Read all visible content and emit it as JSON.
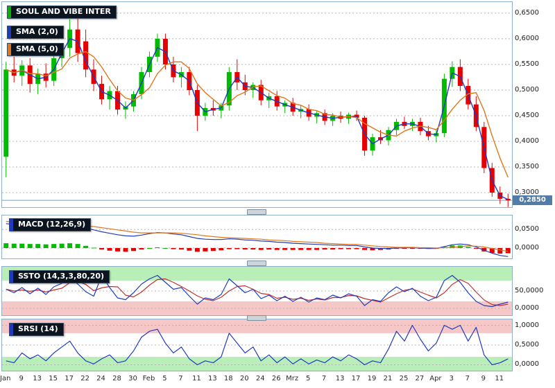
{
  "labels": {
    "title": {
      "text": "SOUL AND VIBE INTER",
      "tab_color": "#00b400"
    },
    "sma2": {
      "text": "SMA (2,0)",
      "tab_color": "#1e3bbd"
    },
    "sma5": {
      "text": "SMA (5,0)",
      "tab_color": "#e0761a"
    },
    "macd": {
      "text": "MACD (12,26,9)",
      "tab_color": "#1e3bbd"
    },
    "ssto": {
      "text": "SSTO (14,3,3,80,20)",
      "tab_color": "#1e3bbd"
    },
    "srsi": {
      "text": "SRSI (14)",
      "tab_color": "#1e3bbd"
    }
  },
  "chart_data": {
    "type": "candlestick",
    "title": "SOUL AND VIBE INTER",
    "x_ticks": [
      "Jan",
      "9",
      "13",
      "15",
      "17",
      "22",
      "24",
      "28",
      "30",
      "Feb",
      "5",
      "7",
      "11",
      "13",
      "18",
      "20",
      "24",
      "26",
      "Mrz",
      "5",
      "7",
      "13",
      "17",
      "19",
      "21",
      "25",
      "27",
      "Apr",
      "3",
      "7",
      "9",
      "11"
    ],
    "x_tick_step": 2,
    "colors": {
      "up": "#00bb00",
      "down": "#e60000",
      "grid": "#b4b4b4",
      "current_price_line": "#6fa0c8",
      "current_price_badge": "#527ca8"
    },
    "price": {
      "ylim": [
        0.2717,
        0.6715
      ],
      "ticks": [
        {
          "v": 0.65,
          "label": "0,6500"
        },
        {
          "v": 0.6,
          "label": "0,6000"
        },
        {
          "v": 0.55,
          "label": "0,5500"
        },
        {
          "v": 0.5,
          "label": "0,5000"
        },
        {
          "v": 0.45,
          "label": "0,4500"
        },
        {
          "v": 0.4,
          "label": "0,4000"
        },
        {
          "v": 0.35,
          "label": "0,3500"
        },
        {
          "v": 0.3,
          "label": "0,3000"
        }
      ],
      "current": {
        "v": 0.285,
        "label": "0,2850"
      },
      "sma": [
        {
          "name": "SMA (2,0)",
          "period": 2,
          "color": "#1e3bbd"
        },
        {
          "name": "SMA (5,0)",
          "period": 5,
          "color": "#e0761a"
        }
      ],
      "candles": [
        [
          0.37,
          0.555,
          0.33,
          0.54
        ],
        [
          0.54,
          0.565,
          0.515,
          0.528
        ],
        [
          0.528,
          0.558,
          0.508,
          0.548
        ],
        [
          0.548,
          0.562,
          0.495,
          0.512
        ],
        [
          0.512,
          0.542,
          0.492,
          0.532
        ],
        [
          0.532,
          0.552,
          0.505,
          0.518
        ],
        [
          0.518,
          0.572,
          0.508,
          0.562
        ],
        [
          0.562,
          0.592,
          0.545,
          0.582
        ],
        [
          0.582,
          0.638,
          0.565,
          0.618
        ],
        [
          0.618,
          0.65,
          0.555,
          0.572
        ],
        [
          0.595,
          0.618,
          0.525,
          0.54
        ],
        [
          0.54,
          0.56,
          0.498,
          0.512
        ],
        [
          0.512,
          0.528,
          0.472,
          0.482
        ],
        [
          0.482,
          0.508,
          0.462,
          0.498
        ],
        [
          0.498,
          0.508,
          0.452,
          0.462
        ],
        [
          0.462,
          0.478,
          0.444,
          0.468
        ],
        [
          0.468,
          0.498,
          0.458,
          0.492
        ],
        [
          0.492,
          0.545,
          0.482,
          0.535
        ],
        [
          0.535,
          0.575,
          0.525,
          0.565
        ],
        [
          0.565,
          0.61,
          0.555,
          0.6
        ],
        [
          0.6,
          0.61,
          0.54,
          0.55
        ],
        [
          0.55,
          0.565,
          0.515,
          0.525
        ],
        [
          0.525,
          0.545,
          0.505,
          0.535
        ],
        [
          0.535,
          0.545,
          0.49,
          0.5
        ],
        [
          0.5,
          0.51,
          0.42,
          0.45
        ],
        [
          0.45,
          0.475,
          0.44,
          0.465
        ],
        [
          0.465,
          0.48,
          0.45,
          0.46
        ],
        [
          0.46,
          0.475,
          0.445,
          0.47
        ],
        [
          0.47,
          0.545,
          0.46,
          0.535
        ],
        [
          0.535,
          0.56,
          0.5,
          0.515
        ],
        [
          0.515,
          0.53,
          0.49,
          0.5
        ],
        [
          0.5,
          0.515,
          0.485,
          0.51
        ],
        [
          0.51,
          0.52,
          0.47,
          0.48
        ],
        [
          0.48,
          0.495,
          0.465,
          0.488
        ],
        [
          0.488,
          0.498,
          0.46,
          0.468
        ],
        [
          0.468,
          0.48,
          0.455,
          0.475
        ],
        [
          0.475,
          0.485,
          0.45,
          0.458
        ],
        [
          0.458,
          0.47,
          0.445,
          0.463
        ],
        [
          0.463,
          0.472,
          0.44,
          0.448
        ],
        [
          0.448,
          0.46,
          0.435,
          0.455
        ],
        [
          0.455,
          0.462,
          0.432,
          0.44
        ],
        [
          0.44,
          0.455,
          0.43,
          0.45
        ],
        [
          0.45,
          0.458,
          0.436,
          0.444
        ],
        [
          0.444,
          0.456,
          0.434,
          0.452
        ],
        [
          0.452,
          0.46,
          0.44,
          0.446
        ],
        [
          0.446,
          0.45,
          0.372,
          0.382
        ],
        [
          0.382,
          0.415,
          0.372,
          0.408
        ],
        [
          0.408,
          0.422,
          0.395,
          0.402
        ],
        [
          0.402,
          0.428,
          0.392,
          0.422
        ],
        [
          0.422,
          0.444,
          0.412,
          0.438
        ],
        [
          0.438,
          0.448,
          0.424,
          0.43
        ],
        [
          0.43,
          0.444,
          0.42,
          0.438
        ],
        [
          0.438,
          0.446,
          0.412,
          0.42
        ],
        [
          0.42,
          0.43,
          0.402,
          0.41
        ],
        [
          0.41,
          0.424,
          0.398,
          0.416
        ],
        [
          0.416,
          0.532,
          0.408,
          0.522
        ],
        [
          0.522,
          0.556,
          0.506,
          0.545
        ],
        [
          0.545,
          0.56,
          0.498,
          0.508
        ],
        [
          0.508,
          0.522,
          0.462,
          0.472
        ],
        [
          0.472,
          0.488,
          0.42,
          0.428
        ],
        [
          0.428,
          0.438,
          0.338,
          0.348
        ],
        [
          0.348,
          0.358,
          0.292,
          0.3
        ],
        [
          0.3,
          0.312,
          0.278,
          0.288
        ],
        [
          0.288,
          0.298,
          0.272,
          0.285
        ]
      ]
    },
    "macd": {
      "label": "MACD (12,26,9)",
      "ylim": [
        -0.028,
        0.088
      ],
      "ticks": [
        {
          "v": 0.05,
          "label": "0,0500"
        },
        {
          "v": 0,
          "label": "0,0000"
        }
      ],
      "line_color": "#1e3bbd",
      "signal_color": "#e0761a",
      "histogram": [
        0.013,
        0.012,
        0.012,
        0.011,
        0.011,
        0.01,
        0.011,
        0.012,
        0.013,
        0.011,
        0.006,
        0.001,
        -0.004,
        -0.007,
        -0.009,
        -0.01,
        -0.008,
        -0.004,
        0.0,
        0.002,
        0.0,
        -0.003,
        -0.004,
        -0.007,
        -0.01,
        -0.009,
        -0.008,
        -0.006,
        -0.003,
        -0.003,
        -0.004,
        -0.004,
        -0.005,
        -0.004,
        -0.005,
        -0.005,
        -0.005,
        -0.005,
        -0.005,
        -0.005,
        -0.004,
        -0.004,
        -0.003,
        -0.003,
        -0.003,
        -0.005,
        -0.006,
        -0.005,
        -0.004,
        -0.002,
        -0.001,
        -0.001,
        -0.001,
        -0.002,
        -0.001,
        0.003,
        0.007,
        0.007,
        0.003,
        -0.002,
        -0.009,
        -0.013,
        -0.015,
        -0.014
      ],
      "macd_line": [
        0.066,
        0.064,
        0.062,
        0.06,
        0.058,
        0.057,
        0.057,
        0.058,
        0.06,
        0.058,
        0.054,
        0.049,
        0.044,
        0.04,
        0.036,
        0.033,
        0.032,
        0.035,
        0.039,
        0.042,
        0.041,
        0.038,
        0.036,
        0.031,
        0.026,
        0.024,
        0.023,
        0.023,
        0.025,
        0.024,
        0.022,
        0.021,
        0.019,
        0.018,
        0.016,
        0.015,
        0.013,
        0.012,
        0.011,
        0.01,
        0.009,
        0.008,
        0.008,
        0.007,
        0.007,
        0.003,
        0.0,
        -0.001,
        -0.001,
        0.0,
        0.001,
        0.001,
        0.0,
        -0.001,
        -0.001,
        0.004,
        0.009,
        0.011,
        0.009,
        0.003,
        -0.006,
        -0.014,
        -0.02,
        -0.023
      ],
      "signal_line": [
        0.072,
        0.071,
        0.069,
        0.068,
        0.066,
        0.064,
        0.063,
        0.062,
        0.061,
        0.061,
        0.06,
        0.058,
        0.055,
        0.052,
        0.049,
        0.046,
        0.043,
        0.041,
        0.041,
        0.041,
        0.041,
        0.041,
        0.04,
        0.038,
        0.036,
        0.033,
        0.031,
        0.029,
        0.028,
        0.027,
        0.026,
        0.025,
        0.024,
        0.022,
        0.021,
        0.02,
        0.018,
        0.017,
        0.016,
        0.015,
        0.013,
        0.012,
        0.011,
        0.01,
        0.01,
        0.008,
        0.006,
        0.004,
        0.003,
        0.002,
        0.002,
        0.002,
        0.001,
        0.001,
        0.0,
        0.001,
        0.002,
        0.004,
        0.006,
        0.005,
        0.003,
        -0.001,
        -0.005,
        -0.009
      ]
    },
    "ssto": {
      "label": "SSTO (14,3,3,80,20)",
      "ylim": [
        -20,
        120
      ],
      "ticks": [
        {
          "v": 50,
          "label": "50,0000"
        },
        {
          "v": 0,
          "label": "0,0000"
        }
      ],
      "zones": [
        {
          "from": 80,
          "to": 120,
          "color": "#b9eeb9"
        },
        {
          "from": -20,
          "to": 20,
          "color": "#f6c7c7"
        }
      ],
      "k_color": "#1e3bbd",
      "d_color": "#c03030",
      "k": [
        55,
        45,
        60,
        42,
        58,
        40,
        62,
        72,
        88,
        70,
        48,
        35,
        95,
        60,
        30,
        25,
        45,
        70,
        85,
        95,
        75,
        55,
        60,
        35,
        12,
        30,
        25,
        40,
        85,
        65,
        45,
        55,
        28,
        38,
        22,
        35,
        20,
        32,
        18,
        30,
        25,
        38,
        30,
        42,
        35,
        8,
        25,
        20,
        45,
        62,
        48,
        58,
        35,
        22,
        32,
        80,
        95,
        75,
        45,
        20,
        8,
        5,
        12,
        18
      ],
      "d": [
        55,
        50,
        53,
        49,
        53,
        47,
        53,
        58,
        74,
        77,
        69,
        51,
        59,
        63,
        62,
        38,
        33,
        47,
        67,
        83,
        85,
        75,
        63,
        50,
        36,
        26,
        22,
        32,
        50,
        63,
        65,
        55,
        43,
        40,
        29,
        32,
        26,
        29,
        23,
        27,
        24,
        31,
        31,
        37,
        36,
        28,
        23,
        18,
        30,
        42,
        52,
        56,
        47,
        38,
        30,
        45,
        69,
        83,
        72,
        47,
        24,
        11,
        8,
        12
      ]
    },
    "srsi": {
      "label": "SRSI (14)",
      "ylim": [
        -0.15,
        1.15
      ],
      "ticks": [
        {
          "v": 1,
          "label": "1,0000"
        },
        {
          "v": 0.5,
          "label": "0,5000"
        },
        {
          "v": 0,
          "label": "0,0000"
        }
      ],
      "zones": [
        {
          "from": 0.8,
          "to": 1.15,
          "color": "#f6c7c7"
        },
        {
          "from": -0.15,
          "to": 0.2,
          "color": "#b9eeb9"
        }
      ],
      "color": "#1e3bbd",
      "values": [
        0.1,
        0.05,
        0.3,
        0.15,
        0.25,
        0.1,
        0.3,
        0.45,
        0.6,
        0.3,
        0.1,
        0.02,
        0.15,
        0.25,
        0.05,
        0.1,
        0.35,
        0.7,
        0.85,
        0.9,
        0.55,
        0.3,
        0.45,
        0.15,
        0.0,
        0.1,
        0.05,
        0.2,
        0.8,
        0.55,
        0.3,
        0.45,
        0.1,
        0.25,
        0.05,
        0.2,
        0.02,
        0.15,
        0.02,
        0.12,
        0.05,
        0.2,
        0.1,
        0.25,
        0.15,
        0.0,
        0.1,
        0.05,
        0.4,
        0.85,
        0.6,
        1.0,
        0.65,
        0.35,
        0.55,
        1.0,
        0.9,
        1.0,
        0.6,
        0.95,
        0.25,
        0.0,
        0.05,
        0.15
      ]
    }
  }
}
